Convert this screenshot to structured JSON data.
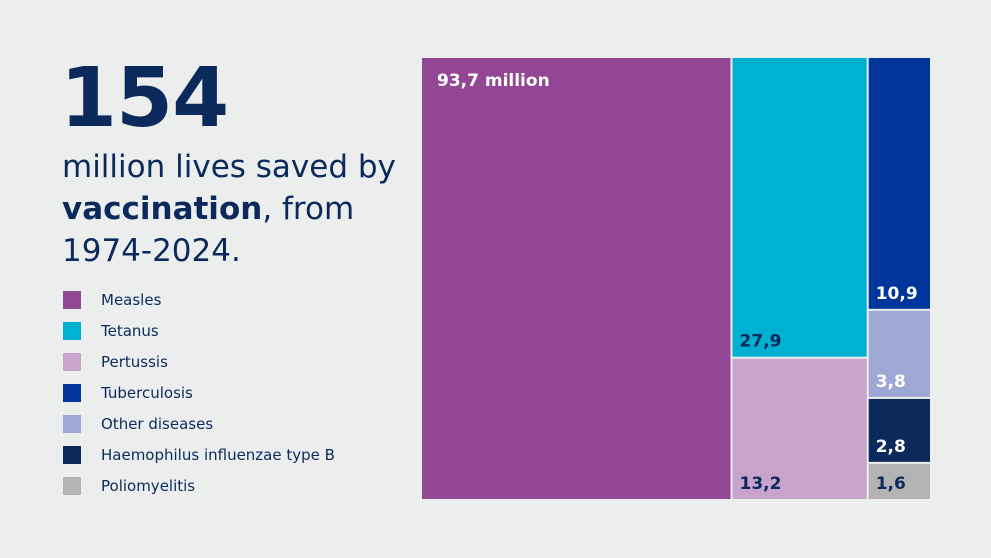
{
  "headline": {
    "number": "154",
    "line_prefix": "million lives saved by ",
    "emphasis": "vaccination",
    "line_suffix": ", from 1974-2024."
  },
  "chart_data": {
    "type": "treemap",
    "title": "154 million lives saved by vaccination, from 1974-2024.",
    "unit": "million",
    "legend_position": "left",
    "series": [
      {
        "name": "Measles",
        "value": 93.7,
        "label": "93,7 million",
        "color": "#924795",
        "label_color": "#ffffff"
      },
      {
        "name": "Tetanus",
        "value": 27.9,
        "label": "27,9",
        "color": "#00b0d3",
        "label_color": "#0b2a5b"
      },
      {
        "name": "Pertussis",
        "value": 13.2,
        "label": "13,2",
        "color": "#c8a3cc",
        "label_color": "#0b2a5b"
      },
      {
        "name": "Tuberculosis",
        "value": 10.9,
        "label": "10,9",
        "color": "#00359b",
        "label_color": "#ffffff"
      },
      {
        "name": "Other diseases",
        "value": 3.8,
        "label": "3,8",
        "color": "#9fa7d5",
        "label_color": "#ffffff"
      },
      {
        "name": "Haemophilus influenzae type B",
        "value": 2.8,
        "label": "2,8",
        "color": "#0b2a5b",
        "label_color": "#ffffff"
      },
      {
        "name": "Poliomyelitis",
        "value": 1.6,
        "label": "1,6",
        "color": "#b3b3b3",
        "label_color": "#0b2a5b"
      }
    ]
  }
}
